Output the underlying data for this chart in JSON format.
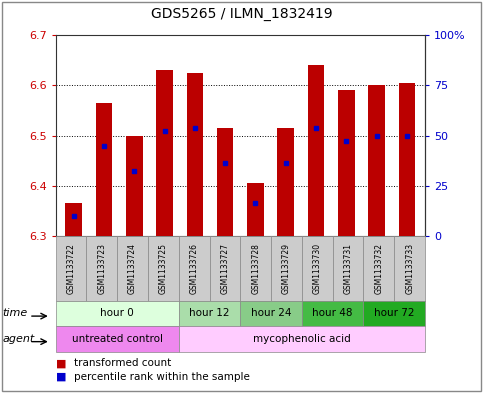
{
  "title": "GDS5265 / ILMN_1832419",
  "samples": [
    "GSM1133722",
    "GSM1133723",
    "GSM1133724",
    "GSM1133725",
    "GSM1133726",
    "GSM1133727",
    "GSM1133728",
    "GSM1133729",
    "GSM1133730",
    "GSM1133731",
    "GSM1133732",
    "GSM1133733"
  ],
  "bar_tops": [
    6.365,
    6.565,
    6.5,
    6.63,
    6.625,
    6.515,
    6.405,
    6.515,
    6.64,
    6.59,
    6.6,
    6.605
  ],
  "percentile_values": [
    6.34,
    6.48,
    6.43,
    6.51,
    6.515,
    6.445,
    6.365,
    6.445,
    6.515,
    6.49,
    6.5,
    6.5
  ],
  "bar_bottom": 6.3,
  "ylim_left": [
    6.3,
    6.7
  ],
  "ylim_right": [
    0,
    100
  ],
  "yticks_left": [
    6.3,
    6.4,
    6.5,
    6.6,
    6.7
  ],
  "yticks_right": [
    0,
    25,
    50,
    75,
    100
  ],
  "bar_color": "#bb0000",
  "percentile_color": "#0000cc",
  "time_groups": [
    {
      "label": "hour 0",
      "start": 0,
      "end": 4,
      "color": "#ddffdd"
    },
    {
      "label": "hour 12",
      "start": 4,
      "end": 6,
      "color": "#aaddaa"
    },
    {
      "label": "hour 24",
      "start": 6,
      "end": 8,
      "color": "#88cc88"
    },
    {
      "label": "hour 48",
      "start": 8,
      "end": 10,
      "color": "#44bb44"
    },
    {
      "label": "hour 72",
      "start": 10,
      "end": 12,
      "color": "#22aa22"
    }
  ],
  "agent_groups": [
    {
      "label": "untreated control",
      "start": 0,
      "end": 4,
      "color": "#ee88ee"
    },
    {
      "label": "mycophenolic acid",
      "start": 4,
      "end": 12,
      "color": "#ffccff"
    }
  ],
  "sample_bg": "#cccccc",
  "legend_bar_label": "transformed count",
  "legend_pct_label": "percentile rank within the sample",
  "time_label": "time",
  "agent_label": "agent",
  "bg_color": "#ffffff",
  "axis_left_color": "#cc0000",
  "axis_right_color": "#0000cc",
  "border_color": "#888888"
}
